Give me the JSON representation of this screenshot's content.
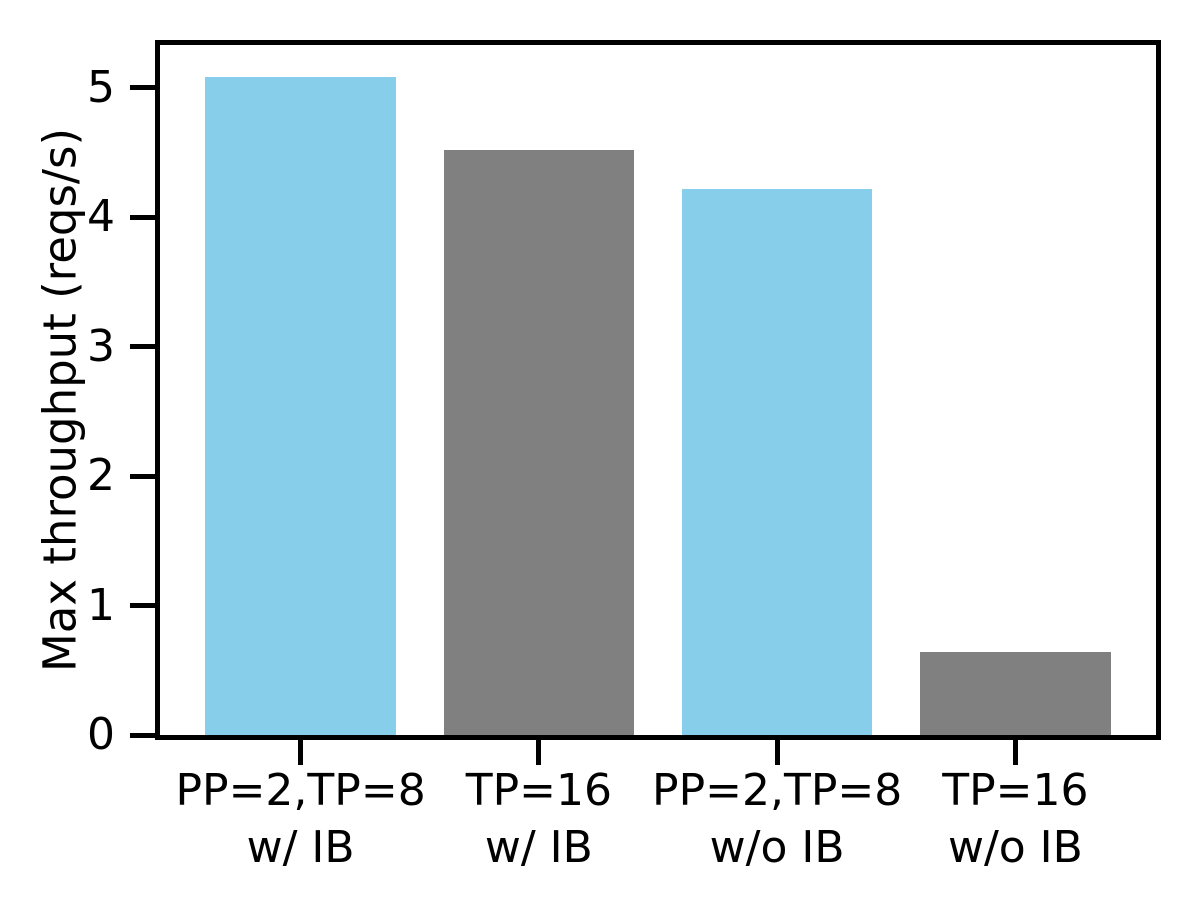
{
  "colors": {
    "background": "#ffffff",
    "axis": "#000000",
    "skyblue": "#87CEEB",
    "gray": "#808080"
  },
  "chart_data": {
    "type": "bar",
    "title": "",
    "xlabel": "",
    "ylabel": "Max throughput (reqs/s)",
    "categories": [
      [
        "PP=2,TP=8",
        "w/ IB"
      ],
      [
        "TP=16",
        "w/ IB"
      ],
      [
        "PP=2,TP=8",
        "w/o IB"
      ],
      [
        "TP=16",
        "w/o IB"
      ]
    ],
    "values": [
      5.08,
      4.52,
      4.22,
      0.64
    ],
    "bar_colors": [
      "#87CEEB",
      "#808080",
      "#87CEEB",
      "#808080"
    ],
    "ylim": [
      0,
      5.33
    ],
    "xlim": [
      -0.59,
      3.59
    ],
    "bar_width_units": 0.8,
    "yticks": [
      0,
      1,
      2,
      3,
      4,
      5
    ],
    "grid": false,
    "legend_position": "none"
  }
}
